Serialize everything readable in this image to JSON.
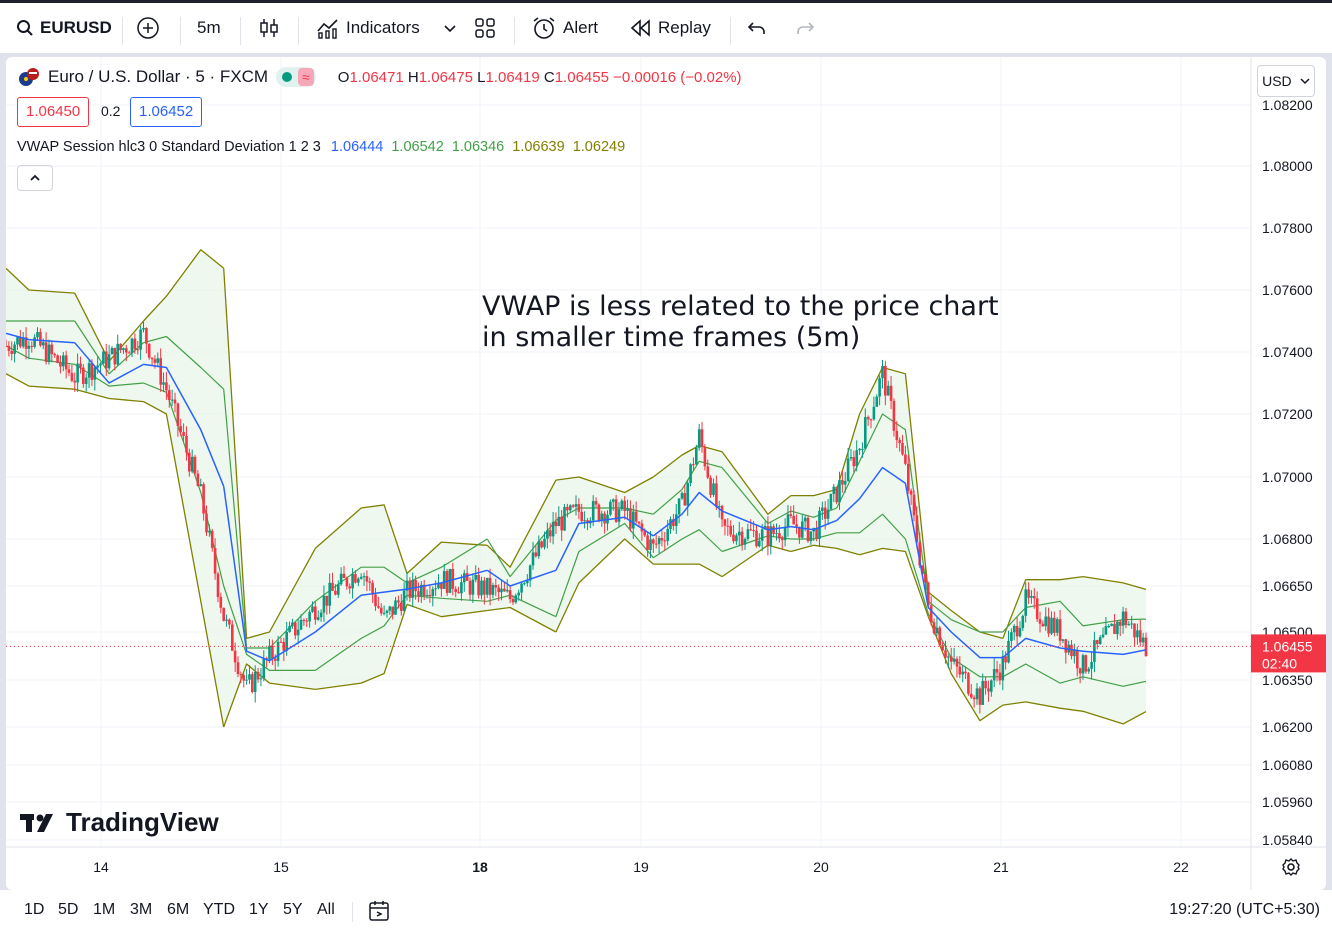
{
  "toolbar": {
    "symbol": "EURUSD",
    "interval": "5m",
    "indicators_label": "Indicators",
    "alert_label": "Alert",
    "replay_label": "Replay"
  },
  "legend": {
    "title": "Euro / U.S. Dollar · 5 · FXCM",
    "ohlc": {
      "o_label": "O",
      "o": "1.06471",
      "h_label": "H",
      "h": "1.06475",
      "l_label": "L",
      "l": "1.06419",
      "c_label": "C",
      "c": "1.06455",
      "change": "−0.00016 (−0.02%)"
    },
    "sell_price": "1.06450",
    "spread": "0.2",
    "buy_price": "1.06452",
    "indicator_name": "VWAP Session hlc3 0 Standard Deviation 1 2 3",
    "indicator_values": [
      "1.06444",
      "1.06542",
      "1.06346",
      "1.06639",
      "1.06249"
    ],
    "collapse_icon": "chevron-up-icon"
  },
  "currency": "USD",
  "annotation": {
    "line1": "VWAP is less related to the price chart",
    "line2": "in smaller time frames (5m)"
  },
  "brand": "TradingView",
  "bottom": {
    "ranges": [
      "1D",
      "5D",
      "1M",
      "3M",
      "6M",
      "YTD",
      "1Y",
      "5Y",
      "All"
    ],
    "clock": "19:27:20 (UTC+5:30)"
  },
  "colors": {
    "up": "#089981",
    "down": "#f23645",
    "vwap": "#2962ff",
    "band1": "#43a047",
    "band3": "#808000",
    "fill": "#e8f5e9"
  },
  "chart_data": {
    "type": "line",
    "title": "Euro / U.S. Dollar · 5 · FXCM",
    "y_axis": {
      "ticks": [
        "1.08200",
        "1.08000",
        "1.07800",
        "1.07600",
        "1.07400",
        "1.07200",
        "1.07000",
        "1.06800",
        "1.06650",
        "1.06500",
        "1.06350",
        "1.06200",
        "1.06080",
        "1.05960",
        "1.05840"
      ],
      "current_price": "1.06455",
      "countdown": "02:40"
    },
    "x_axis": {
      "ticks": [
        "14",
        "15",
        "18",
        "19",
        "20",
        "21",
        "22"
      ],
      "bold": [
        "18"
      ]
    },
    "x": [
      0,
      4,
      12,
      18,
      24,
      28,
      34,
      38,
      42,
      46,
      54,
      62,
      66,
      70,
      76,
      84,
      88,
      96,
      100,
      108,
      113,
      118,
      121,
      125,
      133,
      137,
      141,
      145,
      149,
      153,
      157,
      161,
      165,
      170,
      174,
      178,
      184,
      188,
      195,
      199
    ],
    "segment_breaks": [
      12,
      24,
      38,
      54,
      70,
      84,
      96,
      113,
      125,
      137,
      149,
      161,
      174,
      188
    ],
    "series": [
      {
        "name": "price",
        "values": [
          1.0742,
          1.0745,
          1.0732,
          1.0738,
          1.0746,
          1.0728,
          1.0694,
          1.0655,
          1.0632,
          1.0642,
          1.0658,
          1.0671,
          1.0654,
          1.0663,
          1.0667,
          1.0664,
          1.0661,
          1.0685,
          1.0689,
          1.0689,
          1.0677,
          1.0691,
          1.0713,
          1.0683,
          1.0681,
          1.0685,
          1.0682,
          1.0695,
          1.071,
          1.0733,
          1.0702,
          1.0658,
          1.064,
          1.063,
          1.064,
          1.066,
          1.065,
          1.0639,
          1.0655,
          1.06455
        ]
      },
      {
        "name": "vwap",
        "values": [
          1.0746,
          1.0744,
          1.0743,
          1.073,
          1.0736,
          1.0735,
          1.0715,
          1.0697,
          1.0644,
          1.0641,
          1.065,
          1.0662,
          1.0663,
          1.0664,
          1.0666,
          1.067,
          1.0665,
          1.067,
          1.0685,
          1.0687,
          1.0681,
          1.0688,
          1.0695,
          1.0689,
          1.0683,
          1.0684,
          1.0683,
          1.0686,
          1.0693,
          1.0703,
          1.0698,
          1.0658,
          1.065,
          1.0642,
          1.0642,
          1.0648,
          1.0645,
          1.0644,
          1.0643,
          1.06444
        ]
      },
      {
        "name": "upper-1",
        "values": [
          1.075,
          1.075,
          1.075,
          1.0733,
          1.0743,
          1.0745,
          1.0735,
          1.0728,
          1.0645,
          1.0645,
          1.066,
          1.0671,
          1.0671,
          1.0666,
          1.0671,
          1.068,
          1.0668,
          1.0686,
          1.069,
          1.069,
          1.0688,
          1.0696,
          1.0705,
          1.0703,
          1.0685,
          1.0689,
          1.0687,
          1.069,
          1.0705,
          1.072,
          1.0715,
          1.066,
          1.0654,
          1.065,
          1.065,
          1.0658,
          1.066,
          1.0652,
          1.0654,
          1.06542
        ]
      },
      {
        "name": "lower-1",
        "values": [
          1.0742,
          1.0738,
          1.0736,
          1.0729,
          1.073,
          1.0727,
          1.0695,
          1.0665,
          1.0643,
          1.0638,
          1.0638,
          1.0648,
          1.0652,
          1.0662,
          1.0661,
          1.066,
          1.0662,
          1.0655,
          1.0676,
          1.0685,
          1.0674,
          1.068,
          1.0683,
          1.0676,
          1.0681,
          1.068,
          1.068,
          1.0682,
          1.0682,
          1.0688,
          1.068,
          1.0656,
          1.0642,
          1.0636,
          1.0636,
          1.064,
          1.0634,
          1.0636,
          1.0633,
          1.06346
        ]
      },
      {
        "name": "upper-3",
        "values": [
          1.0767,
          1.076,
          1.0759,
          1.0737,
          1.075,
          1.0758,
          1.0773,
          1.0767,
          1.0648,
          1.065,
          1.0677,
          1.069,
          1.0691,
          1.0669,
          1.0679,
          1.0678,
          1.0671,
          1.0699,
          1.07,
          1.0695,
          1.07,
          1.0707,
          1.071,
          1.0708,
          1.0688,
          1.0694,
          1.0694,
          1.0696,
          1.072,
          1.0735,
          1.0733,
          1.0663,
          1.0657,
          1.065,
          1.0648,
          1.0667,
          1.0667,
          1.0668,
          1.0666,
          1.06639
        ]
      },
      {
        "name": "lower-3",
        "values": [
          1.0733,
          1.0729,
          1.0728,
          1.0725,
          1.0724,
          1.072,
          1.066,
          1.062,
          1.064,
          1.0634,
          1.0632,
          1.0634,
          1.0637,
          1.0659,
          1.0655,
          1.0657,
          1.0658,
          1.065,
          1.0666,
          1.068,
          1.0672,
          1.0672,
          1.0672,
          1.0668,
          1.0678,
          1.0676,
          1.0678,
          1.0677,
          1.0675,
          1.0677,
          1.0676,
          1.0655,
          1.0637,
          1.0622,
          1.0627,
          1.0628,
          1.0626,
          1.0625,
          1.0621,
          1.06249
        ]
      }
    ]
  }
}
